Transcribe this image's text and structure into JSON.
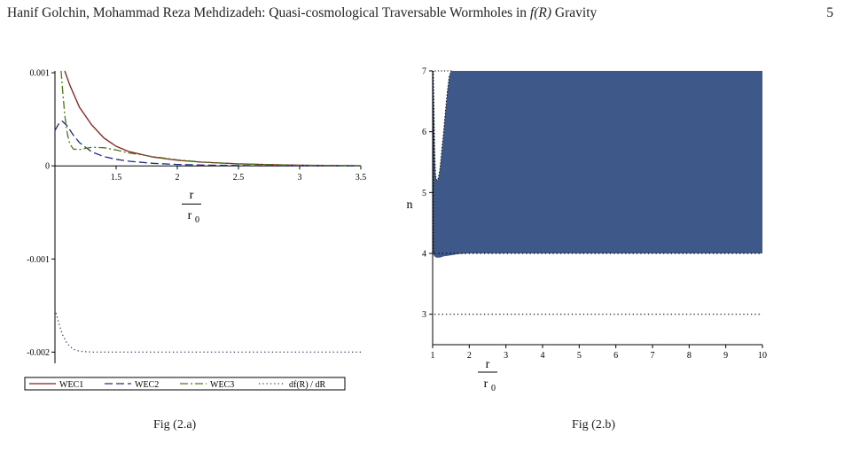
{
  "header": {
    "title_prefix": "Hanif Golchin, Mohammad Reza Mehdizadeh: Quasi-cosmological Traversable Wormholes in ",
    "title_math": "f(R)",
    "title_suffix": " Gravity",
    "page_number": "5"
  },
  "captions": {
    "left": "Fig (2.a)",
    "right": "Fig (2.b)"
  },
  "colors": {
    "wec1": "#8b1a1a",
    "wec2": "#1a2a8b",
    "wec3": "#4a7a1a",
    "dfdr": "#3a3a6a",
    "region": "#3e5989"
  },
  "chart_data": [
    {
      "type": "line",
      "title": "",
      "xlabel_top": "r",
      "xlabel_bottom": "r",
      "xlabel_sub": "0",
      "ylabel": "",
      "xlim": [
        1.0,
        3.5
      ],
      "ylim": [
        -0.00212,
        0.00102
      ],
      "x_ticks": [
        1.5,
        2,
        2.5,
        3,
        3.5
      ],
      "x_tick_labels": [
        "1.5",
        "2",
        "2.5",
        "3",
        "3.5"
      ],
      "y_ticks": [
        0.001,
        0,
        -0.001,
        -0.002
      ],
      "y_tick_labels": [
        "0.001",
        "0",
        "-0.001",
        "-0.002"
      ],
      "legend": {
        "placement": "bottom",
        "entries": [
          "WEC1",
          "WEC2",
          "WEC3",
          "df(R) / dR"
        ]
      },
      "series": [
        {
          "name": "WEC1",
          "style": "solid",
          "x": [
            1.08,
            1.12,
            1.2,
            1.3,
            1.4,
            1.5,
            1.6,
            1.8,
            2.0,
            2.2,
            2.5,
            2.8,
            3.0,
            3.2,
            3.5
          ],
          "y": [
            0.00102,
            0.00087,
            0.00063,
            0.00044,
            0.0003,
            0.00021,
            0.000155,
            9.5e-05,
            6e-05,
            4e-05,
            2.2e-05,
            1.2e-05,
            8e-06,
            5e-06,
            2e-06
          ]
        },
        {
          "name": "WEC2",
          "style": "dashed",
          "x": [
            1.0,
            1.03,
            1.06,
            1.1,
            1.15,
            1.2,
            1.3,
            1.4,
            1.5,
            1.6,
            1.8,
            2.0,
            2.2,
            2.5,
            3.0,
            3.5
          ],
          "y": [
            0.00038,
            0.00045,
            0.00048,
            0.00043,
            0.00033,
            0.00025,
            0.00015,
            0.0001,
            7e-05,
            5e-05,
            2.8e-05,
            1.5e-05,
            9e-06,
            4e-06,
            1e-06,
            0.0
          ]
        },
        {
          "name": "WEC3",
          "style": "dashdot",
          "x": [
            1.05,
            1.06,
            1.08,
            1.1,
            1.12,
            1.15,
            1.2,
            1.3,
            1.4,
            1.5,
            1.6,
            1.8,
            2.0,
            2.2,
            2.5,
            3.0,
            3.5
          ],
          "y": [
            0.00102,
            0.00085,
            0.00055,
            0.00035,
            0.00024,
            0.00018,
            0.000175,
            0.0002,
            0.000195,
            0.00017,
            0.00014,
            0.0001,
            6.5e-05,
            4.2e-05,
            2e-05,
            6e-06,
            2e-06
          ]
        },
        {
          "name": "df(R) / dR",
          "style": "dotted",
          "x": [
            1.0,
            1.03,
            1.06,
            1.1,
            1.15,
            1.2,
            1.3,
            1.5,
            2.0,
            2.5,
            3.0,
            3.5
          ],
          "y": [
            -0.00154,
            -0.00168,
            -0.00181,
            -0.00191,
            -0.00197,
            -0.00199,
            -0.002,
            -0.002,
            -0.002,
            -0.002,
            -0.002,
            -0.002
          ]
        }
      ]
    },
    {
      "type": "area",
      "title": "",
      "xlabel_top": "r",
      "xlabel_bottom": "r",
      "xlabel_sub": "0",
      "ylabel": "n",
      "xlim": [
        1,
        10
      ],
      "ylim": [
        2.5,
        7
      ],
      "x_ticks": [
        1,
        2,
        3,
        4,
        5,
        6,
        7,
        8,
        9,
        10
      ],
      "x_tick_labels": [
        "1",
        "2",
        "3",
        "4",
        "5",
        "6",
        "7",
        "8",
        "9",
        "10"
      ],
      "y_ticks": [
        3,
        4,
        5,
        6,
        7
      ],
      "y_tick_labels": [
        "3",
        "4",
        "5",
        "6",
        "7"
      ],
      "region": {
        "upper_boundary_n": 7,
        "lower_boundary": {
          "x": [
            1.0,
            1.05,
            1.1,
            1.2,
            1.3,
            1.5,
            1.7,
            2.0,
            2.5,
            3,
            10
          ],
          "n": [
            4.0,
            3.95,
            3.93,
            3.93,
            3.95,
            3.97,
            3.99,
            4.0,
            4.0,
            4.0,
            4.0
          ]
        },
        "excluded_notch": {
          "x": [
            1.02,
            1.04,
            1.06,
            1.08,
            1.1,
            1.13,
            1.16,
            1.2,
            1.25,
            1.3,
            1.35,
            1.4,
            1.45,
            1.5
          ],
          "n": [
            7.0,
            6.2,
            5.6,
            5.3,
            5.22,
            5.2,
            5.25,
            5.4,
            5.7,
            6.0,
            6.35,
            6.65,
            6.9,
            7.0
          ]
        }
      },
      "reference_lines": [
        {
          "n": 3,
          "style": "dotted"
        },
        {
          "n": 4,
          "style": "dotted"
        }
      ]
    }
  ]
}
